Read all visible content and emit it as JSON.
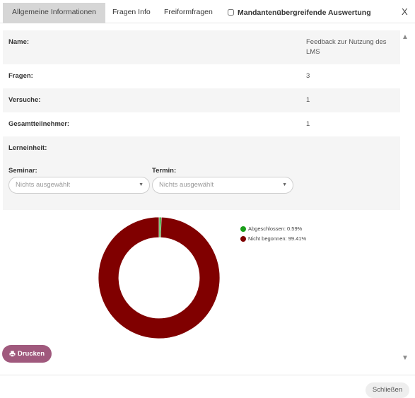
{
  "tabs": [
    {
      "label": "Allgemeine Informationen"
    },
    {
      "label": "Fragen Info"
    },
    {
      "label": "Freiformfragen"
    }
  ],
  "mandant_label": "Mandantenübergreifende Auswertung",
  "close_icon_glyph": "X",
  "info_rows": [
    {
      "label": "Name:",
      "value": "Feedback zur Nutzung des LMS"
    },
    {
      "label": "Fragen:",
      "value": "3"
    },
    {
      "label": "Versuche:",
      "value": "1"
    },
    {
      "label": "Gesamtteilnehmer:",
      "value": "1"
    },
    {
      "label": "Lerneinheit:",
      "value": ""
    }
  ],
  "filters": {
    "seminar": {
      "label": "Seminar:",
      "value": "Nichts ausgewählt"
    },
    "termin": {
      "label": "Termin:",
      "value": "Nichts ausgewählt"
    }
  },
  "chart_data": {
    "type": "pie",
    "donut": true,
    "slices": [
      {
        "name": "Abgeschlossen",
        "value": 0.59,
        "label": "Abgeschlossen: 0.59%",
        "color": "#1a9e1a"
      },
      {
        "name": "Nicht begonnen",
        "value": 99.41,
        "label": "Nicht begonnen: 99.41%",
        "color": "#800000"
      }
    ],
    "legend_position": "top-right"
  },
  "print_label": "Drucken",
  "close_button_label": "Schließen"
}
